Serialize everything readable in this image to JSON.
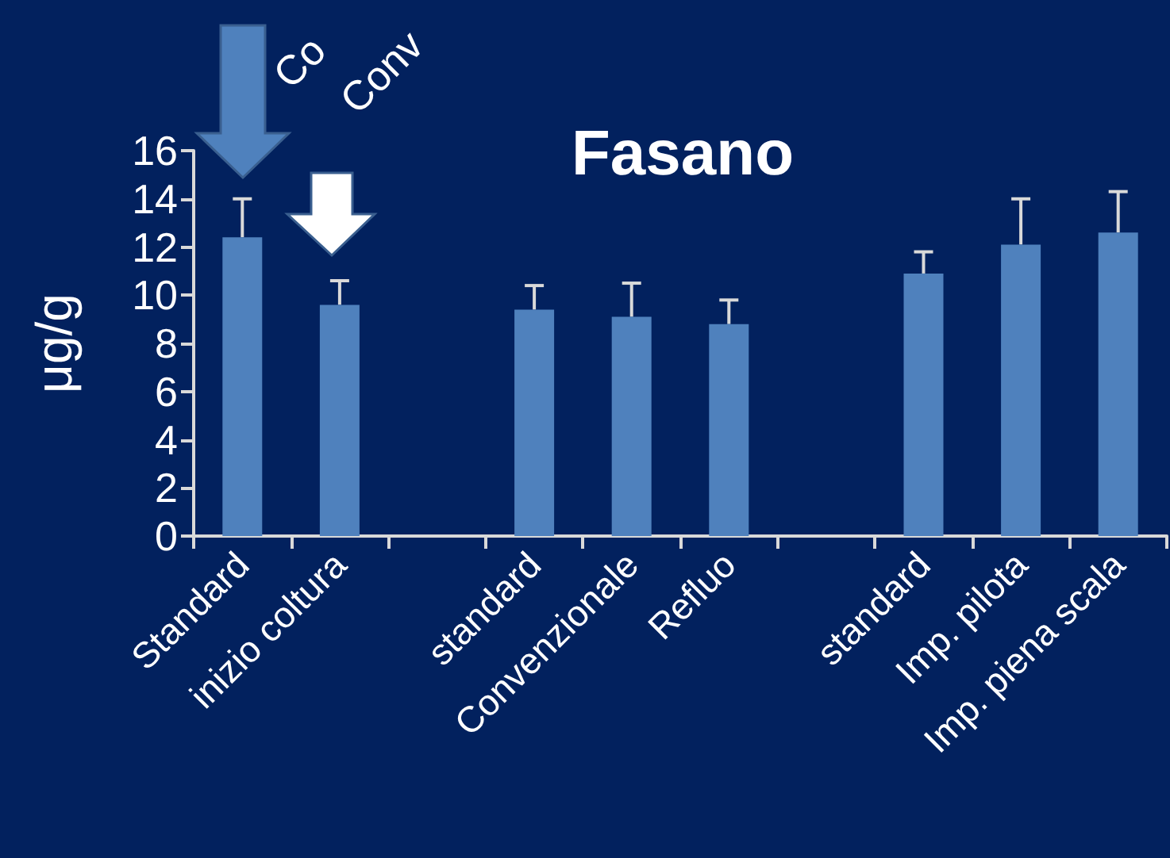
{
  "chart_data": {
    "type": "bar",
    "title": "Fasano",
    "ylabel": "μg/g",
    "annotations": [
      "Co",
      "Conv"
    ],
    "categories": [
      "Standard",
      "inizio coltura",
      null,
      "standard",
      "Convenzionale",
      "Refluo",
      null,
      "standard",
      "Imp. pilota",
      "Imp. piena scala"
    ],
    "values": [
      12.4,
      9.6,
      null,
      9.4,
      9.1,
      8.8,
      null,
      10.9,
      12.1,
      12.6
    ],
    "errors": [
      [
        12.4,
        14.0
      ],
      [
        9.6,
        10.6
      ],
      null,
      [
        9.4,
        10.4
      ],
      [
        9.1,
        10.5
      ],
      [
        8.8,
        9.8
      ],
      null,
      [
        10.9,
        11.8
      ],
      [
        12.1,
        14.0
      ],
      [
        12.6,
        14.3
      ]
    ],
    "color": "#4f81bd",
    "ylim": [
      0,
      16
    ],
    "yticks": [
      0,
      2,
      4,
      6,
      8,
      10,
      12,
      14,
      16
    ],
    "grid": false
  }
}
